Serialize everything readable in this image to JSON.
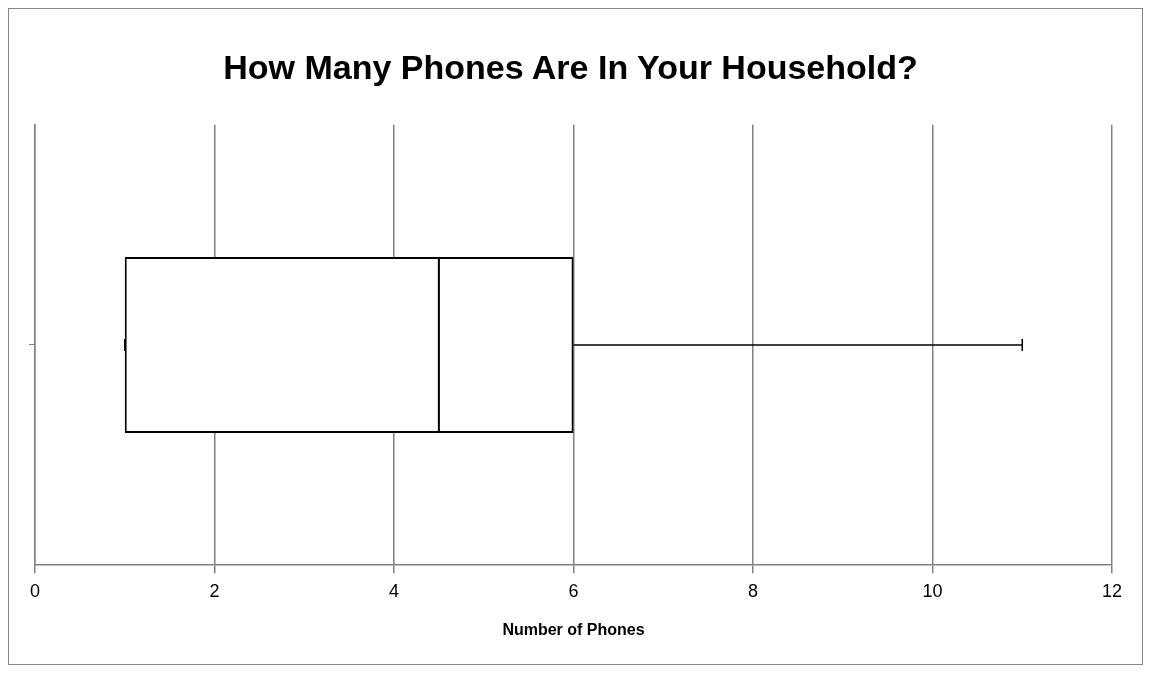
{
  "chart_data": {
    "type": "box",
    "title": "How Many Phones Are In Your Household?",
    "xlabel": "Number of Phones",
    "orientation": "horizontal",
    "categories": [
      null
    ],
    "boxes": [
      {
        "low": 1,
        "q1": 1,
        "median": 4.5,
        "q3": 6,
        "high": 11
      }
    ],
    "xlim": [
      0,
      12
    ],
    "xticks": [
      0,
      2,
      4,
      6,
      8,
      10,
      12
    ],
    "grid": "x",
    "tick_labels": "x"
  }
}
